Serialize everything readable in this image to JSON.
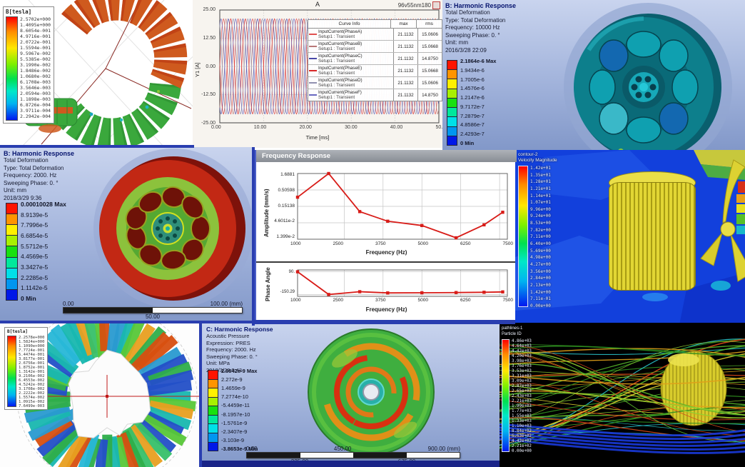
{
  "shared": {
    "ansys_band_colors": [
      "#ff1400",
      "#ff9400",
      "#fff000",
      "#a8f000",
      "#18e010",
      "#00e89c",
      "#00e0e8",
      "#0096f0",
      "#0018e8"
    ]
  },
  "maxwell_toroid": {
    "legend_title": "B[tesla]",
    "legend_values": [
      "2.5702e+000",
      "1.4095e+000",
      "8.6054e-001",
      "4.9716e-001",
      "2.0722e-001",
      "1.5594e-001",
      "9.5967e-002",
      "5.5385e-002",
      "3.1990e-002",
      "1.8486e-002",
      "1.0680e-002",
      "6.1708e-003",
      "3.5646e-003",
      "2.0594e-003",
      "1.1898e-003",
      "6.8726e-004",
      "3.9711e-004",
      "2.2942e-004"
    ]
  },
  "current_plot": {
    "title": "A",
    "model_label": "96v55nm180",
    "x_label": "Time [ms]",
    "y_label": "Y1 [A]",
    "x_tick_labels": [
      "0.00",
      "10.00",
      "20.00",
      "30.00",
      "40.00",
      "50.00"
    ],
    "y_tick_labels": [
      "25.00",
      "12.50",
      "0.00",
      "-12.50",
      "-25.00"
    ],
    "legend": {
      "curve_header": "Curve Info",
      "max_header": "max",
      "rms_header": "rms"
    }
  },
  "harmonic_top": {
    "title": "B: Harmonic Response",
    "lines": [
      "Total Deformation",
      "Type: Total Deformation",
      "Frequency: 10000 Hz",
      "Sweeping Phase: 0. °",
      "Unit: mm",
      "2016/3/28 22:09"
    ],
    "legend_labels": [
      "2.1864e-6 Max",
      "1.9434e-6",
      "1.7005e-6",
      "1.4576e-6",
      "1.2147e-6",
      "9.7172e-7",
      "7.2879e-7",
      "4.8586e-7",
      "2.4293e-7",
      "0 Min"
    ]
  },
  "harmonic_left": {
    "title": "B: Harmonic Response",
    "lines": [
      "Total Deformation",
      "Type: Total Deformation",
      "Frequency: 2000. Hz",
      "Sweeping Phase: 0. °",
      "Unit: mm",
      "2018/3/29 9:36"
    ],
    "legend_labels": [
      "0.00010028 Max",
      "8.9139e-5",
      "7.7996e-5",
      "6.6854e-5",
      "5.5712e-5",
      "4.4569e-5",
      "3.3427e-5",
      "2.2285e-5",
      "1.1142e-5",
      "0 Min"
    ],
    "ruler": {
      "start": "0.00",
      "mid": "50.00",
      "end": "100.00 (mm)"
    }
  },
  "freq_window": {
    "title": "Frequency Response",
    "amp_ylabel": "Amplitude (mm/s)",
    "phase_ylabel": "Phase Angle",
    "x_label": "Frequency (Hz)",
    "x_tick_labels": [
      "1000",
      "2500",
      "3750",
      "5000",
      "6250",
      "7500"
    ],
    "amp_y_tick_labels": [
      "1.6881",
      "0.50598",
      "0.15138",
      "4.6011e-2",
      "1.399e-2"
    ],
    "phase_y_tick_labels": [
      "90.",
      "-150.29"
    ]
  },
  "cfd_velocity": {
    "legend_title_line1": "contour-2",
    "legend_title_line2": "Velocity Magnitude",
    "legend_values": [
      "1.42e+01",
      "1.35e+01",
      "1.28e+01",
      "1.21e+01",
      "1.14e+01",
      "1.07e+01",
      "9.96e+00",
      "9.24e+00",
      "8.53e+00",
      "7.82e+00",
      "7.11e+00",
      "6.40e+00",
      "5.69e+00",
      "4.98e+00",
      "4.27e+00",
      "3.56e+00",
      "2.84e+00",
      "2.13e+00",
      "1.42e+00",
      "7.11e-01",
      "0.00e+00"
    ]
  },
  "maxwell_rotor": {
    "legend_title": "B[tesla]",
    "legend_values": [
      "2.2578e+000",
      "1.5824e+000",
      "1.1090e+000",
      "7.7724e-001",
      "5.4474e-001",
      "3.8177e-001",
      "2.6756e-001",
      "1.8752e-001",
      "1.3142e-001",
      "9.2106e-002",
      "6.4553e-002",
      "4.5242e-002",
      "3.1708e-002",
      "2.2222e-002",
      "1.5574e-002",
      "1.0915e-002",
      "7.6499e-003"
    ]
  },
  "harmonic_c": {
    "title": "C: Harmonic Response",
    "lines": [
      "Acoustic Pressure",
      "Expression: PRES",
      "Frequency: 2000. Hz",
      "Sweeping Phase: 0. °",
      "Unit: MPa",
      "2018/3/29 9:43"
    ],
    "legend_labels": [
      "2.9942e-9 Max",
      "2.272e-9",
      "1.4659e-9",
      "7.2774e-10",
      "-5.4459e-11",
      "-8.1957e-10",
      "-1.5761e-9",
      "-2.3407e-9",
      "-3.103e-9",
      "-3.8653e-9 Min"
    ],
    "ruler": {
      "start": "0.00",
      "q1": "225.00",
      "mid": "450.00",
      "q3": "675.00",
      "end": "900.00 (mm)"
    }
  },
  "pathlines": {
    "legend_title_line1": "pathlines-1",
    "legend_title_line2": "Particle ID",
    "legend_values": [
      "4.86e+03",
      "4.64e+03",
      "4.42e+03",
      "4.20e+03",
      "3.98e+03",
      "3.76e+03",
      "3.53e+03",
      "3.31e+03",
      "3.09e+03",
      "2.87e+03",
      "2.65e+03",
      "2.43e+03",
      "2.21e+03",
      "1.99e+03",
      "1.77e+03",
      "1.55e+03",
      "1.33e+03",
      "1.10e+03",
      "8.84e+02",
      "6.63e+02",
      "4.42e+02",
      "2.21e+02",
      "0.00e+00"
    ]
  },
  "chart_data": [
    {
      "id": "input-currents",
      "type": "line",
      "title": "A",
      "model": "96v55nm180",
      "xlabel": "Time [ms]",
      "ylabel": "Y1 [A]",
      "xlim": [
        0,
        50
      ],
      "ylim": [
        -25,
        25
      ],
      "x_ticks": [
        0,
        10,
        20,
        30,
        40,
        50
      ],
      "y_ticks": [
        25,
        12.5,
        0,
        -12.5,
        -25
      ],
      "waveform": {
        "amplitude": 21.1132,
        "period_ms": 3.3333
      },
      "series": [
        {
          "name": "InputCurrent(PhaseA)",
          "setup": "Setup1 : Transient",
          "phase_deg": 0,
          "color": "#e05050",
          "max": "21.1132",
          "rms": "15.0606"
        },
        {
          "name": "InputCurrent(PhaseB)",
          "setup": "Setup1 : Transient",
          "phase_deg": 60,
          "color": "#b87878",
          "max": "21.1132",
          "rms": "15.0668"
        },
        {
          "name": "InputCurrent(PhaseC)",
          "setup": "Setup1 : Transient",
          "phase_deg": 120,
          "color": "#4848a8",
          "max": "21.1132",
          "rms": "14.8750"
        },
        {
          "name": "InputCurrent(PhaseE)",
          "setup": "Setup1 : Transient",
          "phase_deg": 180,
          "color": "#d82828",
          "max": "21.1132",
          "rms": "15.0668"
        },
        {
          "name": "InputCurrent(PhaseD)",
          "setup": "Setup1 : Transient",
          "phase_deg": 240,
          "color": "#9090b0",
          "max": "21.1132",
          "rms": "15.0606"
        },
        {
          "name": "InputCurrent(PhaseF)",
          "setup": "Setup1 : Transient",
          "phase_deg": 300,
          "color": "#6868c0",
          "max": "21.1132",
          "rms": "14.8750"
        }
      ]
    },
    {
      "id": "freq-amplitude",
      "type": "line",
      "ylabel": "Amplitude (mm/s)",
      "xlabel": "Frequency (Hz)",
      "yscale": "log",
      "x": [
        1000,
        2000,
        3000,
        3900,
        5000,
        6100,
        7000,
        7600
      ],
      "y": [
        0.3,
        1.6881,
        0.105,
        0.052,
        0.038,
        0.0155,
        0.04,
        0.1
      ],
      "x_ticks": [
        1000,
        2500,
        3750,
        5000,
        6250,
        7500
      ],
      "y_tick_labels": [
        "1.6881",
        "0.50598",
        "0.15138",
        "4.6011e-2",
        "1.399e-2"
      ],
      "ylim": [
        0.01399,
        1.6881
      ],
      "color": "#d81c18"
    },
    {
      "id": "freq-phase",
      "type": "line",
      "ylabel": "Phase Angle",
      "xlabel": "Frequency (Hz)",
      "x": [
        1000,
        2000,
        3000,
        3900,
        5000,
        6100,
        7000,
        7600
      ],
      "y": [
        90,
        -150.29,
        -121,
        -134,
        -132,
        -130,
        -127,
        -123
      ],
      "x_ticks": [
        1000,
        2500,
        3750,
        5000,
        6250,
        7500
      ],
      "y_tick_labels": [
        "90.",
        "-150.29"
      ],
      "ylim": [
        110,
        -170
      ],
      "color": "#d81c18"
    }
  ]
}
